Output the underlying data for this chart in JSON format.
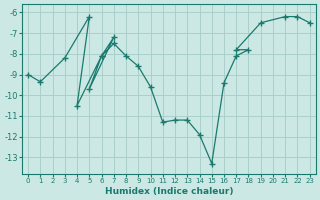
{
  "x": [
    0,
    1,
    3,
    5,
    4,
    6,
    5,
    7,
    6,
    7,
    8,
    9,
    10,
    11,
    12,
    13,
    14,
    15,
    16,
    17,
    18,
    17,
    19,
    21,
    22,
    23
  ],
  "y": [
    -9.0,
    -9.35,
    -8.2,
    -6.2,
    -10.5,
    -8.1,
    -9.7,
    -7.2,
    -8.1,
    -7.5,
    -8.1,
    -8.6,
    -9.6,
    -11.3,
    -11.2,
    -11.2,
    -11.9,
    -13.3,
    -9.4,
    -8.1,
    -7.8,
    -7.8,
    -6.5,
    -6.2,
    -6.2,
    -6.5
  ],
  "line_color": "#1a7a6e",
  "marker": "+",
  "marker_size": 4,
  "xlabel": "Humidex (Indice chaleur)",
  "xlim": [
    -0.5,
    23.5
  ],
  "ylim": [
    -13.8,
    -5.6
  ],
  "xticks": [
    0,
    1,
    2,
    3,
    4,
    5,
    6,
    7,
    8,
    9,
    10,
    11,
    12,
    13,
    14,
    15,
    16,
    17,
    18,
    19,
    20,
    21,
    22,
    23
  ],
  "yticks": [
    -6,
    -7,
    -8,
    -9,
    -10,
    -11,
    -12,
    -13
  ],
  "bg_color": "#cce8e4",
  "grid_color": "#aacfca"
}
